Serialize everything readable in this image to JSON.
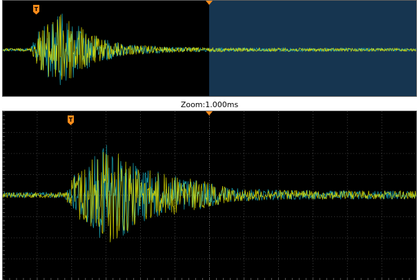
{
  "zoom": {
    "label_prefix": "Zoom:",
    "timebase": "1.000ms"
  },
  "markers": {
    "trigger_label": "T"
  },
  "colors": {
    "background": "#000000",
    "zoom_window": "#163550",
    "trace_yellow": "#e8e800",
    "trace_cyan": "#18a8b8",
    "trigger_orange": "#ff8c1a",
    "grid": "#707070"
  },
  "icons": {
    "trigger_marker": "trigger-t-icon",
    "trigger_position": "trigger-position-arrow-icon"
  }
}
